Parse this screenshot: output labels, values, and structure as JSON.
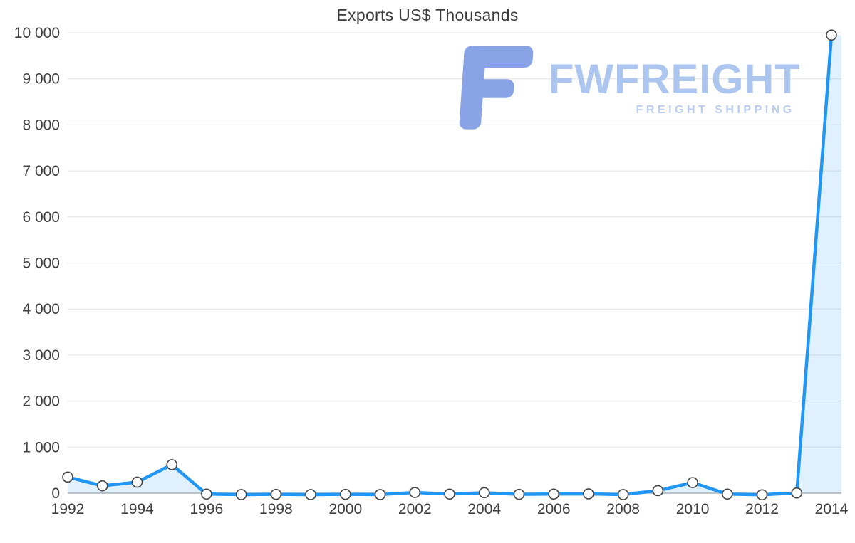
{
  "chart_data": {
    "type": "line",
    "title": "Exports US$ Thousands",
    "x": [
      1992,
      1993,
      1994,
      1995,
      1996,
      1997,
      1998,
      1999,
      2000,
      2001,
      2002,
      2003,
      2004,
      2005,
      2006,
      2007,
      2008,
      2009,
      2010,
      2011,
      2012,
      2013,
      2014
    ],
    "values": [
      350,
      160,
      240,
      620,
      -20,
      -30,
      -25,
      -30,
      -25,
      -30,
      15,
      -20,
      10,
      -25,
      -20,
      -15,
      -30,
      55,
      230,
      -20,
      -35,
      5,
      9950
    ],
    "ylim": [
      0,
      10000
    ],
    "y_ticks": [
      {
        "value": 0,
        "label": "0"
      },
      {
        "value": 1000,
        "label": "1 000"
      },
      {
        "value": 2000,
        "label": "2 000"
      },
      {
        "value": 3000,
        "label": "3 000"
      },
      {
        "value": 4000,
        "label": "4 000"
      },
      {
        "value": 5000,
        "label": "5 000"
      },
      {
        "value": 6000,
        "label": "6 000"
      },
      {
        "value": 7000,
        "label": "7 000"
      },
      {
        "value": 8000,
        "label": "8 000"
      },
      {
        "value": 9000,
        "label": "9 000"
      },
      {
        "value": 10000,
        "label": "10 000"
      }
    ],
    "x_tick_labels": [
      {
        "index": 0,
        "label": "1992"
      },
      {
        "index": 2,
        "label": "1994"
      },
      {
        "index": 4,
        "label": "1996"
      },
      {
        "index": 6,
        "label": "1998"
      },
      {
        "index": 8,
        "label": "2000"
      },
      {
        "index": 10,
        "label": "2002"
      },
      {
        "index": 12,
        "label": "2004"
      },
      {
        "index": 14,
        "label": "2006"
      },
      {
        "index": 16,
        "label": "2008"
      },
      {
        "index": 18,
        "label": "2010"
      },
      {
        "index": 20,
        "label": "2012"
      },
      {
        "index": 22,
        "label": "2014"
      }
    ],
    "line_color": "#2196f3",
    "area_color": "rgba(33,150,243,0.14)",
    "marker_fill": "#ffffff",
    "marker_stroke": "#454545",
    "grid_color": "#e4e4e4",
    "axis_color": "#b3b3b3",
    "grid": true,
    "legend": "none"
  },
  "watermark": {
    "brand": "FWFREIGHT",
    "tagline": "FREIGHT SHIPPING",
    "logo_color": "#7e9ce4"
  }
}
